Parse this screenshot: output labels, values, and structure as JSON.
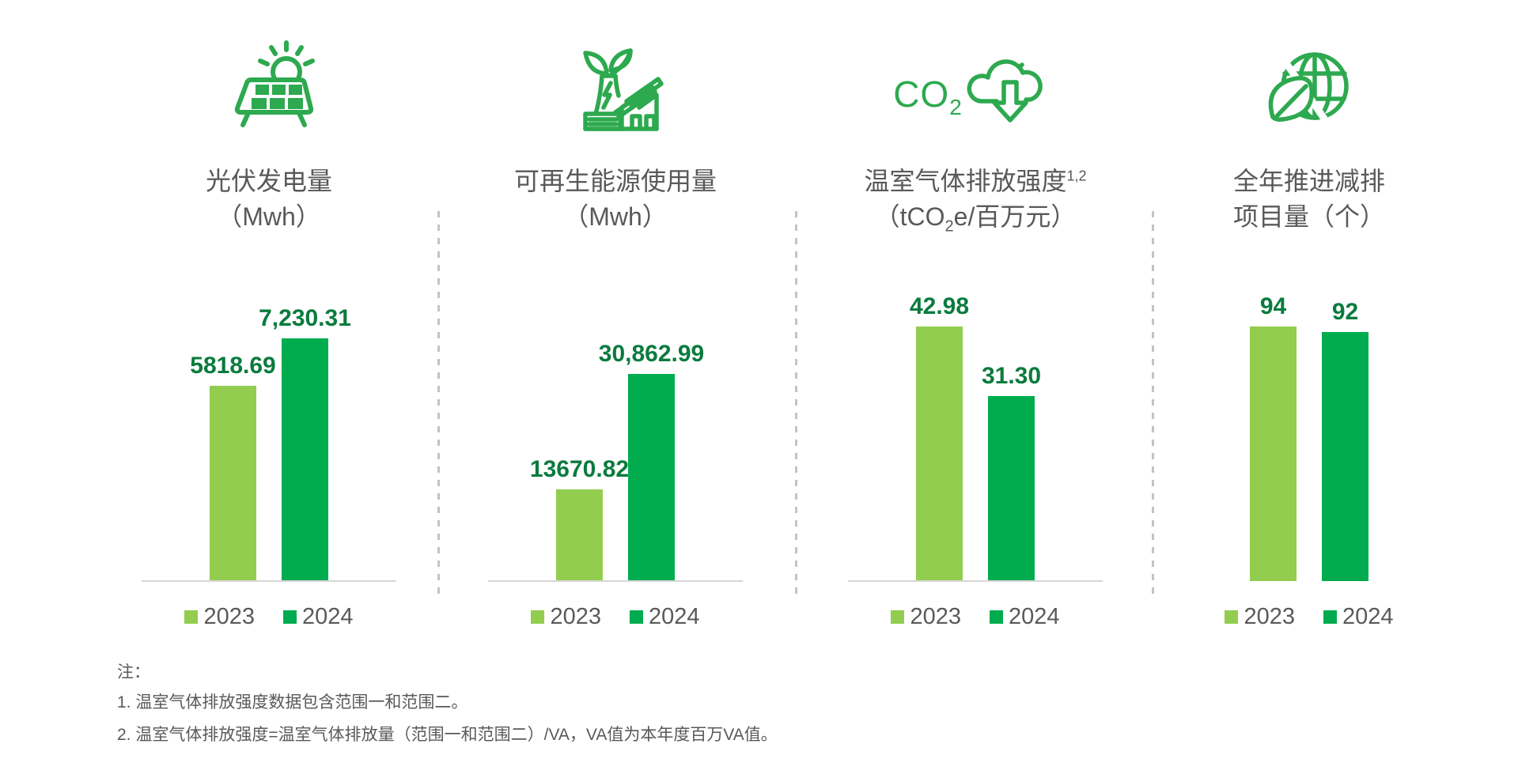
{
  "colors": {
    "bar_2023": "#92CD50",
    "bar_2024": "#00AC4E",
    "value_label": "#0A7B3E",
    "icon_green": "#2DA94F",
    "title_text": "#595959",
    "legend_text": "#595959",
    "baseline": "#D7D7D7",
    "divider": "#C3C3C3",
    "note_text": "#595959"
  },
  "legend": {
    "items": [
      {
        "label": "2023",
        "color": "#92CD50"
      },
      {
        "label": "2024",
        "color": "#00AC4E"
      }
    ]
  },
  "panels": [
    {
      "icon": "solar-panel-sun-icon",
      "title_line1": "光伏发电量",
      "title_line2": "（Mwh）"
    },
    {
      "icon": "green-factory-leaf-icon",
      "title_line1": "可再生能源使用量",
      "title_line2": "（Mwh）"
    },
    {
      "icon": "co2-reduction-cloud-icon",
      "icon_text_main": "CO",
      "icon_text_sub": "2",
      "title_line1_main": "温室气体排放强度",
      "title_line1_sup": "1,2",
      "title_line2_pre": "（tCO",
      "title_line2_sub": "2",
      "title_line2_post": "e/百万元）"
    },
    {
      "icon": "globe-leaf-icon",
      "title_line1": "全年推进减排",
      "title_line2": "项目量（个）"
    }
  ],
  "chart_data": [
    {
      "type": "bar",
      "title": "光伏发电量（Mwh）",
      "categories": [
        "2023",
        "2024"
      ],
      "values": [
        5818.69,
        7230.31
      ],
      "value_labels": [
        "5818.69",
        "7,230.31"
      ],
      "ylim": [
        0,
        8360
      ],
      "ylabel": "Mwh",
      "grid": false,
      "legend_position": "bottom",
      "baseline_shown": true
    },
    {
      "type": "bar",
      "title": "可再生能源使用量（Mwh）",
      "categories": [
        "2023",
        "2024"
      ],
      "values": [
        13670.82,
        30862.99
      ],
      "value_labels": [
        "13670.82",
        "30,862.99"
      ],
      "ylim": [
        0,
        41800
      ],
      "ylabel": "Mwh",
      "grid": false,
      "legend_position": "bottom",
      "baseline_shown": true
    },
    {
      "type": "bar",
      "title": "温室气体排放强度（tCO2e/百万元）",
      "categories": [
        "2023",
        "2024"
      ],
      "values": [
        42.98,
        31.3
      ],
      "value_labels": [
        "42.98",
        "31.30"
      ],
      "ylim": [
        0,
        47.4
      ],
      "ylabel": "tCO2e/百万元",
      "grid": false,
      "legend_position": "bottom",
      "baseline_shown": true
    },
    {
      "type": "bar",
      "title": "全年推进减排项目量（个）",
      "categories": [
        "2023",
        "2024"
      ],
      "values": [
        94,
        92
      ],
      "value_labels": [
        "94",
        "92"
      ],
      "ylim": [
        0,
        103.6
      ],
      "ylabel": "个",
      "grid": false,
      "legend_position": "bottom",
      "baseline_shown": false
    }
  ],
  "notes": {
    "heading": "注：",
    "items": [
      "1. 温室气体排放强度数据包含范围一和范围二。",
      "2. 温室气体排放强度=温室气体排放量（范围一和范围二）/VA，VA值为本年度百万VA值。"
    ]
  }
}
